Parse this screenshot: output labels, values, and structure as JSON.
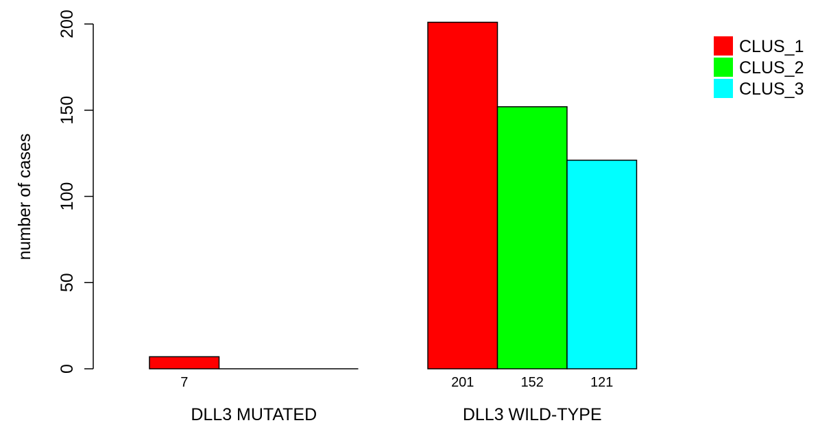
{
  "chart_data": {
    "type": "bar",
    "grouped": true,
    "categories": [
      "DLL3 MUTATED",
      "DLL3 WILD-TYPE"
    ],
    "series": [
      {
        "name": "CLUS_1",
        "color": "#ff0000",
        "values": [
          7,
          201
        ]
      },
      {
        "name": "CLUS_2",
        "color": "#00ff00",
        "values": [
          0,
          152
        ]
      },
      {
        "name": "CLUS_3",
        "color": "#00ffff",
        "values": [
          0,
          121
        ]
      }
    ],
    "bar_value_labels": [
      [
        "7",
        "",
        ""
      ],
      [
        "201",
        "152",
        "121"
      ]
    ],
    "ylabel": "number of cases",
    "ylim": [
      0,
      200
    ],
    "yticks": [
      0,
      50,
      100,
      150,
      200
    ],
    "grid": false,
    "legend_position": "top-right"
  }
}
